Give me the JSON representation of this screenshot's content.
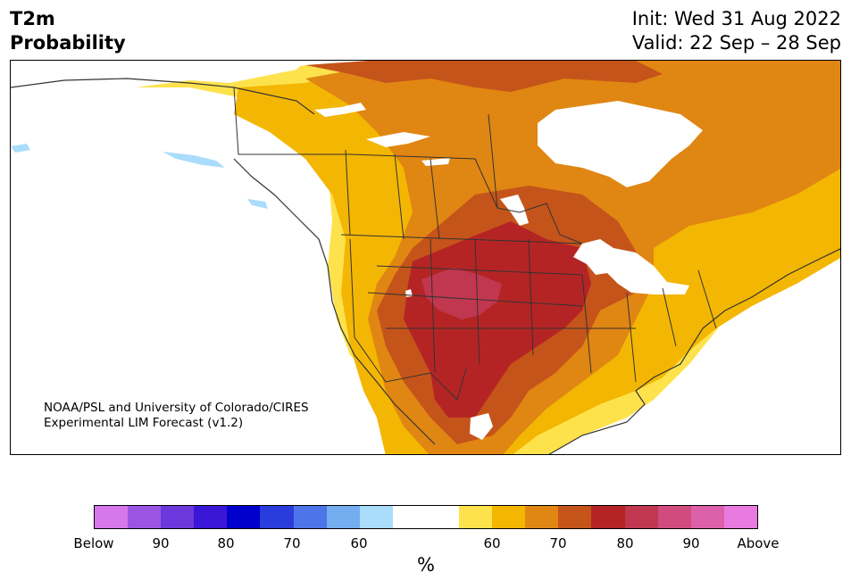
{
  "header": {
    "title_line1": "T2m",
    "title_line2": "Probability",
    "init": "Init: Wed 31 Aug 2022",
    "valid": "Valid: 22 Sep – 28 Sep"
  },
  "credit": {
    "line1": "NOAA/PSL and University of Colorado/CIRES",
    "line2": "Experimental LIM Forecast (v1.2)"
  },
  "colorbar": {
    "unit_label": "%",
    "colors": [
      "#d677ec",
      "#9c55e3",
      "#6c38db",
      "#3a17d6",
      "#0000cd",
      "#2a3ddc",
      "#4e74ea",
      "#74aef0",
      "#aadcfb",
      "#ffffff",
      "#ffffff",
      "#fde24c",
      "#f3b603",
      "#e08612",
      "#c5541a",
      "#b52424",
      "#c1374f",
      "#d24b7f",
      "#dd60ab",
      "#e97ae0"
    ],
    "tick_labels": [
      "Below",
      "90",
      "80",
      "70",
      "60",
      "60",
      "70",
      "80",
      "90",
      "Above"
    ]
  },
  "map": {
    "colors": {
      "p50_60": "#fde24c",
      "p60_70": "#f3b603",
      "p70_80": "#e08612",
      "p80_90": "#c5541a",
      "p90_95": "#b52424",
      "p95_97": "#c1374f",
      "below_light": "#aadcfb",
      "lakes": "#ffffff",
      "borders": "#333333"
    },
    "icons": [
      "lake-shape"
    ]
  }
}
